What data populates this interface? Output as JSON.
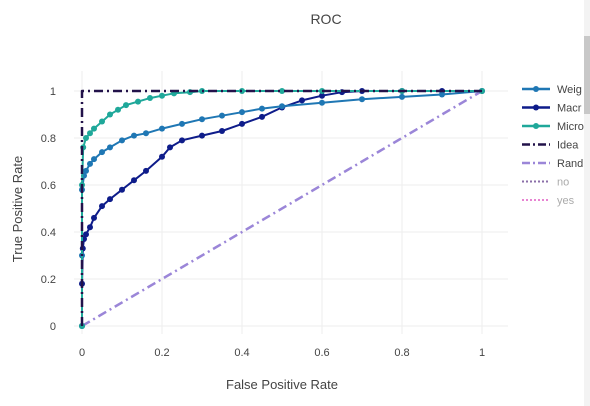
{
  "chart_data": {
    "type": "line",
    "title": "ROC",
    "xlabel": "False Positive Rate",
    "ylabel": "True Positive Rate",
    "xlim": [
      0,
      1
    ],
    "ylim": [
      0,
      1
    ],
    "xticks": [
      "0",
      "0.2",
      "0.4",
      "0.6",
      "0.8",
      "1"
    ],
    "yticks": [
      "0",
      "0.2",
      "0.4",
      "0.6",
      "0.8",
      "1"
    ],
    "grid": true,
    "legend_position": "right",
    "series": [
      {
        "name": "Weighted",
        "legend_label": "Weig",
        "color": "#1f77b4",
        "style": "solid-markers",
        "x": [
          0,
          0,
          0,
          0.005,
          0.01,
          0.02,
          0.03,
          0.05,
          0.07,
          0.1,
          0.13,
          0.16,
          0.2,
          0.25,
          0.3,
          0.35,
          0.4,
          0.45,
          0.5,
          0.6,
          0.7,
          0.8,
          0.9,
          1
        ],
        "y": [
          0,
          0.3,
          0.58,
          0.64,
          0.66,
          0.69,
          0.71,
          0.74,
          0.76,
          0.79,
          0.81,
          0.82,
          0.84,
          0.86,
          0.88,
          0.895,
          0.91,
          0.925,
          0.935,
          0.95,
          0.965,
          0.975,
          0.985,
          1
        ]
      },
      {
        "name": "Macro",
        "legend_label": "Macr",
        "color": "#0e1c8a",
        "style": "solid-markers",
        "x": [
          0,
          0,
          0.002,
          0.005,
          0.01,
          0.02,
          0.03,
          0.05,
          0.07,
          0.1,
          0.13,
          0.16,
          0.2,
          0.22,
          0.25,
          0.3,
          0.35,
          0.4,
          0.45,
          0.5,
          0.55,
          0.6,
          0.65,
          0.7,
          0.8,
          0.9,
          1
        ],
        "y": [
          0,
          0.18,
          0.33,
          0.37,
          0.39,
          0.42,
          0.46,
          0.51,
          0.54,
          0.58,
          0.62,
          0.66,
          0.72,
          0.76,
          0.79,
          0.81,
          0.83,
          0.86,
          0.89,
          0.93,
          0.96,
          0.98,
          0.995,
          1,
          1,
          1,
          1
        ]
      },
      {
        "name": "Micro",
        "legend_label": "Micro",
        "color": "#1fa89a",
        "style": "solid-markers",
        "x": [
          0,
          0,
          0.003,
          0.01,
          0.02,
          0.03,
          0.05,
          0.07,
          0.09,
          0.11,
          0.14,
          0.17,
          0.2,
          0.23,
          0.27,
          0.3,
          0.4,
          0.5,
          0.6,
          0.8,
          1
        ],
        "y": [
          0,
          0.6,
          0.76,
          0.8,
          0.82,
          0.84,
          0.87,
          0.9,
          0.92,
          0.94,
          0.955,
          0.97,
          0.98,
          0.99,
          0.995,
          1,
          1,
          1,
          1,
          1,
          1
        ]
      },
      {
        "name": "Ideal",
        "legend_label": "Idea",
        "color": "#22124a",
        "style": "dashdot",
        "x": [
          0,
          0,
          1
        ],
        "y": [
          0,
          1,
          1
        ]
      },
      {
        "name": "Random",
        "legend_label": "Rand",
        "color": "#9b86d8",
        "style": "dashdot",
        "x": [
          0,
          1
        ],
        "y": [
          0,
          1
        ]
      },
      {
        "name": "no",
        "legend_label": "no",
        "color": "#8b6fa9",
        "style": "dotted-legendonly",
        "x": [],
        "y": []
      },
      {
        "name": "yes",
        "legend_label": "yes",
        "color": "#e884d2",
        "style": "dotted-legendonly",
        "x": [],
        "y": []
      }
    ]
  }
}
